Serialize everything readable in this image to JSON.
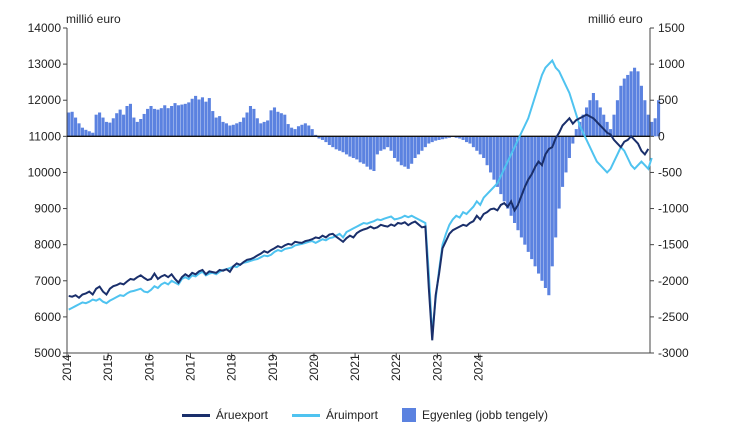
{
  "chart_data": {
    "type": "bar+line",
    "left_axis_unit": "millió euro",
    "right_axis_unit": "millió euro",
    "left_ylim": [
      5000,
      14000
    ],
    "left_ticks": [
      5000,
      6000,
      7000,
      8000,
      9000,
      10000,
      11000,
      12000,
      13000,
      14000
    ],
    "right_ylim": [
      -3000,
      1500
    ],
    "right_ticks": [
      -3000,
      -2500,
      -2000,
      -1500,
      -1000,
      -500,
      0,
      500,
      1000,
      1500
    ],
    "years": [
      "2014",
      "2015",
      "2016",
      "2017",
      "2018",
      "2019",
      "2020",
      "2021",
      "2022",
      "2023",
      "2024"
    ],
    "x_start": 2014.0,
    "months_per_point": 1,
    "grid": false,
    "legend_position": "bottom",
    "colors": {
      "export": "#1a2f6b",
      "import": "#4fc3f0",
      "balance": "#5b82e0"
    },
    "series": [
      {
        "name": "Áruexport",
        "type": "line",
        "axis": "left",
        "values": [
          6580,
          6560,
          6600,
          6530,
          6620,
          6650,
          6700,
          6620,
          6780,
          6840,
          6700,
          6620,
          6780,
          6850,
          6880,
          6930,
          6900,
          6980,
          7050,
          7030,
          7100,
          7150,
          7080,
          7020,
          7050,
          7200,
          7050,
          7120,
          7160,
          7100,
          7180,
          7050,
          6950,
          7100,
          7180,
          7120,
          7220,
          7180,
          7260,
          7300,
          7180,
          7260,
          7240,
          7220,
          7300,
          7280,
          7320,
          7250,
          7400,
          7480,
          7440,
          7520,
          7580,
          7600,
          7640,
          7700,
          7750,
          7820,
          7780,
          7850,
          7900,
          7960,
          7920,
          7980,
          8020,
          8000,
          8080,
          8060,
          8050,
          8100,
          8120,
          8150,
          8200,
          8180,
          8250,
          8200,
          8280,
          8300,
          8220,
          8150,
          8080,
          8180,
          8250,
          8200,
          8320,
          8380,
          8420,
          8450,
          8500,
          8450,
          8480,
          8550,
          8520,
          8500,
          8560,
          8520,
          8600,
          8580,
          8620,
          8540,
          8600,
          8640,
          8560,
          8480,
          8500,
          6800,
          5350,
          6600,
          7200,
          7900,
          8100,
          8300,
          8400,
          8450,
          8500,
          8550,
          8520,
          8600,
          8650,
          8800,
          8700,
          8850,
          8900,
          8980,
          9000,
          8950,
          9100,
          9150,
          9050,
          9200,
          8950,
          9100,
          9350,
          9600,
          9800,
          9950,
          10150,
          10300,
          10200,
          10500,
          10650,
          10700,
          10950,
          11100,
          11300,
          11400,
          11500,
          11350,
          11450,
          11500,
          11550,
          11600,
          11550,
          11500,
          11400,
          11300,
          11200,
          11100,
          11050,
          10900,
          10800,
          10700,
          10850,
          10900,
          11000,
          10900,
          10800,
          10600,
          10500,
          10650
        ]
      },
      {
        "name": "Áruimport",
        "type": "line",
        "axis": "left",
        "values": [
          6200,
          6250,
          6300,
          6350,
          6400,
          6380,
          6420,
          6480,
          6450,
          6500,
          6420,
          6380,
          6450,
          6500,
          6550,
          6600,
          6580,
          6650,
          6700,
          6720,
          6750,
          6780,
          6700,
          6680,
          6750,
          6850,
          6800,
          6900,
          6950,
          6900,
          7000,
          6950,
          6900,
          7050,
          7100,
          7050,
          7150,
          7120,
          7200,
          7250,
          7150,
          7200,
          7220,
          7180,
          7250,
          7300,
          7320,
          7350,
          7400,
          7380,
          7450,
          7500,
          7520,
          7550,
          7580,
          7600,
          7650,
          7700,
          7680,
          7720,
          7800,
          7850,
          7820,
          7880,
          7900,
          7920,
          7980,
          8000,
          8020,
          8050,
          8080,
          8100,
          8050,
          8100,
          8150,
          8120,
          8180,
          8200,
          8250,
          8300,
          8200,
          8350,
          8400,
          8450,
          8500,
          8550,
          8600,
          8580,
          8620,
          8650,
          8700,
          8680,
          8720,
          8750,
          8780,
          8700,
          8720,
          8750,
          8800,
          8760,
          8800,
          8750,
          8700,
          8650,
          8600,
          7200,
          5500,
          6500,
          7300,
          8000,
          8300,
          8550,
          8700,
          8800,
          8750,
          8900,
          8850,
          8950,
          9050,
          9200,
          9100,
          9300,
          9400,
          9500,
          9600,
          9700,
          9900,
          10100,
          10300,
          10500,
          10700,
          10900,
          11100,
          11300,
          11500,
          11800,
          12100,
          12400,
          12700,
          12900,
          13000,
          13100,
          12900,
          12800,
          12600,
          12400,
          12200,
          11900,
          11600,
          11300,
          11100,
          10900,
          10700,
          10500,
          10300,
          10200,
          10100,
          10000,
          10100,
          10300,
          10500,
          10700,
          10600,
          10400,
          10200,
          10100,
          10200,
          10300,
          10200,
          10100,
          10400
        ]
      },
      {
        "name": "Egyenleg (jobb tengely)",
        "type": "bar",
        "axis": "right",
        "values": [
          330,
          340,
          260,
          180,
          120,
          90,
          70,
          50,
          300,
          330,
          260,
          200,
          190,
          250,
          320,
          370,
          300,
          420,
          450,
          260,
          200,
          240,
          310,
          380,
          420,
          380,
          370,
          390,
          430,
          390,
          420,
          460,
          430,
          440,
          450,
          470,
          520,
          560,
          510,
          540,
          480,
          530,
          350,
          260,
          280,
          200,
          180,
          150,
          160,
          180,
          200,
          260,
          330,
          420,
          380,
          250,
          180,
          200,
          220,
          360,
          400,
          340,
          320,
          300,
          170,
          120,
          100,
          140,
          160,
          180,
          150,
          100,
          20,
          -30,
          -50,
          -80,
          -120,
          -150,
          -180,
          -200,
          -220,
          -250,
          -280,
          -300,
          -320,
          -360,
          -380,
          -420,
          -460,
          -480,
          -250,
          -200,
          -180,
          -150,
          -200,
          -300,
          -350,
          -400,
          -420,
          -450,
          -380,
          -300,
          -250,
          -200,
          -150,
          -100,
          -80,
          -60,
          -50,
          -40,
          -30,
          -20,
          -10,
          -20,
          -30,
          -50,
          -80,
          -100,
          -150,
          -200,
          -250,
          -300,
          -400,
          -500,
          -600,
          -700,
          -800,
          -900,
          -1000,
          -1100,
          -1200,
          -1300,
          -1400,
          -1500,
          -1600,
          -1700,
          -1800,
          -1900,
          -2000,
          -2100,
          -2200,
          -1800,
          -1400,
          -1000,
          -700,
          -500,
          -300,
          -100,
          100,
          200,
          300,
          400,
          500,
          600,
          500,
          400,
          300,
          200,
          100,
          300,
          500,
          700,
          800,
          850,
          900,
          950,
          900,
          700,
          500,
          300,
          200,
          250,
          500
        ]
      }
    ]
  }
}
